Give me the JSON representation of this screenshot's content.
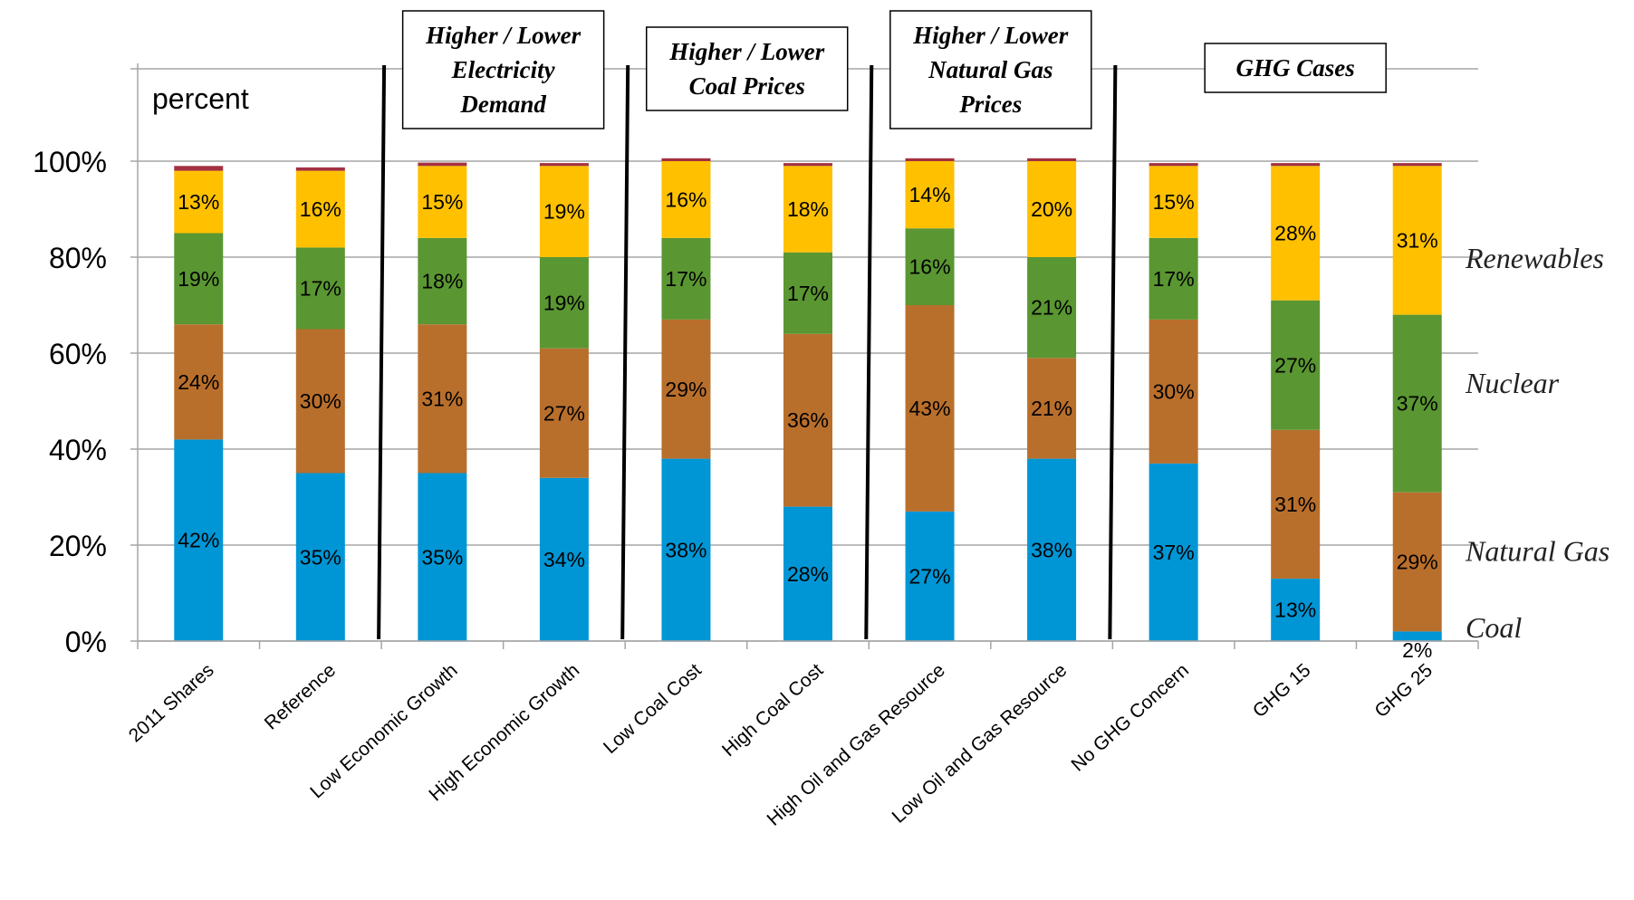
{
  "chart_data": {
    "type": "bar",
    "stacked": true,
    "unit_label": "percent",
    "ylim": [
      0,
      100
    ],
    "y_ticks": [
      "0%",
      "20%",
      "40%",
      "60%",
      "80%",
      "100%"
    ],
    "grid": true,
    "categories": [
      "2011 Shares",
      "Reference",
      "Low Economic Growth",
      "High Economic Growth",
      "Low Coal Cost",
      "High Coal Cost",
      "High Oil and Gas Resource",
      "Low Oil and Gas Resource",
      "No GHG Concern",
      "GHG 15",
      "GHG 25"
    ],
    "series": [
      {
        "name": "Coal",
        "color": "#0096D6",
        "values": [
          42,
          35,
          35,
          34,
          38,
          28,
          27,
          38,
          37,
          13,
          2
        ],
        "labels": [
          "42%",
          "35%",
          "35%",
          "34%",
          "38%",
          "28%",
          "27%",
          "38%",
          "37%",
          "13%",
          "2%"
        ]
      },
      {
        "name": "Natural Gas",
        "color": "#B96F2C",
        "values": [
          24,
          30,
          31,
          27,
          29,
          36,
          43,
          21,
          30,
          31,
          29
        ],
        "labels": [
          "24%",
          "30%",
          "31%",
          "27%",
          "29%",
          "36%",
          "43%",
          "21%",
          "30%",
          "31%",
          "29%"
        ]
      },
      {
        "name": "Nuclear",
        "color": "#5A9632",
        "values": [
          19,
          17,
          18,
          19,
          17,
          17,
          16,
          21,
          17,
          27,
          37
        ],
        "labels": [
          "19%",
          "17%",
          "18%",
          "19%",
          "17%",
          "17%",
          "16%",
          "21%",
          "17%",
          "27%",
          "37%"
        ]
      },
      {
        "name": "Renewables",
        "color": "#FFC000",
        "values": [
          13,
          16,
          15,
          19,
          16,
          18,
          14,
          20,
          15,
          28,
          31
        ],
        "labels": [
          "13%",
          "16%",
          "15%",
          "19%",
          "16%",
          "18%",
          "14%",
          "20%",
          "15%",
          "28%",
          "31%"
        ]
      },
      {
        "name": "",
        "color": "#A33140",
        "values": [
          1,
          0.7,
          0.7,
          0.6,
          0.6,
          0.6,
          0.6,
          0.6,
          0.6,
          0.6,
          0.6
        ],
        "labels": []
      }
    ],
    "groups": [
      {
        "label_lines": [
          "Higher / Lower",
          "Electricity",
          "Demand"
        ],
        "from": 2,
        "to": 3
      },
      {
        "label_lines": [
          "Higher / Lower",
          "Coal Prices"
        ],
        "from": 4,
        "to": 5
      },
      {
        "label_lines": [
          "Higher / Lower",
          "Natural Gas",
          "Prices"
        ],
        "from": 6,
        "to": 7
      },
      {
        "label_lines": [
          "GHG Cases"
        ],
        "from": 8,
        "to": 10
      }
    ]
  }
}
